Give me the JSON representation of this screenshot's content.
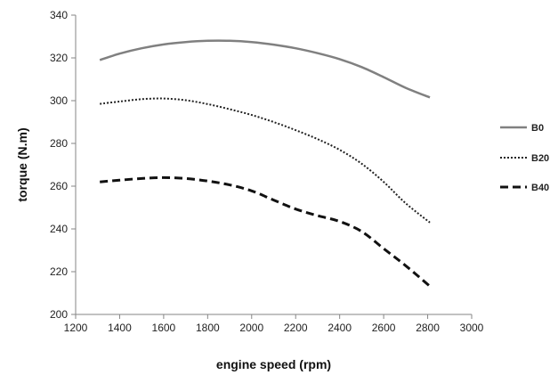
{
  "chart_data": {
    "type": "line",
    "title": "",
    "xlabel": "engine speed (rpm)",
    "ylabel": "torque (N.m)",
    "xlim": [
      1200,
      3000
    ],
    "ylim": [
      200,
      340
    ],
    "xticks": [
      1200,
      1400,
      1600,
      1800,
      2000,
      2200,
      2400,
      2600,
      2800,
      3000
    ],
    "yticks": [
      200,
      220,
      240,
      260,
      280,
      300,
      320,
      340
    ],
    "grid": false,
    "legend_position": "right",
    "series": [
      {
        "name": "B0",
        "style": "solid",
        "color": "#808080",
        "x": [
          1310,
          1400,
          1500,
          1600,
          1700,
          1800,
          1900,
          2000,
          2100,
          2200,
          2300,
          2400,
          2500,
          2600,
          2700,
          2810
        ],
        "y": [
          319,
          322,
          324.5,
          326.3,
          327.4,
          328,
          328,
          327.4,
          326.2,
          324.5,
          322.2,
          319.4,
          315.7,
          311,
          306,
          301.5
        ]
      },
      {
        "name": "B20",
        "style": "dotted",
        "color": "#222222",
        "x": [
          1310,
          1400,
          1500,
          1600,
          1700,
          1800,
          1900,
          2000,
          2100,
          2200,
          2300,
          2400,
          2500,
          2600,
          2700,
          2810
        ],
        "y": [
          298.5,
          299.6,
          300.7,
          301,
          300.2,
          298.4,
          296,
          293.3,
          290,
          286.2,
          282,
          277,
          270.5,
          262,
          252,
          243
        ]
      },
      {
        "name": "B40",
        "style": "dashed",
        "color": "#111111",
        "x": [
          1310,
          1400,
          1500,
          1600,
          1700,
          1800,
          1900,
          2000,
          2100,
          2200,
          2300,
          2400,
          2500,
          2600,
          2700,
          2810
        ],
        "y": [
          262,
          262.8,
          263.6,
          264,
          263.6,
          262.4,
          260.6,
          257.8,
          253.5,
          249.3,
          246.2,
          243.5,
          238.8,
          230.8,
          222.8,
          213.2
        ]
      }
    ]
  }
}
